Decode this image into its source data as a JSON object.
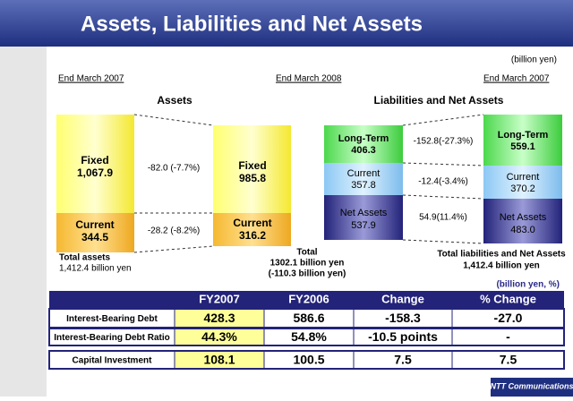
{
  "header": {
    "title": "Assets, Liabilities and Net Assets"
  },
  "unit_note": "(billion yen)",
  "periods": [
    "End March 2007",
    "End March 2008",
    "End March 2007"
  ],
  "assets": {
    "title": "Assets",
    "end_2007": {
      "fixed_label": "Fixed",
      "fixed": "1,067.9",
      "current_label": "Current",
      "current": "344.5",
      "total_label": "Total assets",
      "total": "1,412.4 billion yen"
    },
    "end_2008": {
      "fixed_label": "Fixed",
      "fixed": "985.8",
      "current_label": "Current",
      "current": "316.2",
      "total_label": "Total",
      "total": "1302.1 billion yen",
      "total_change": "(-110.3 billion yen)"
    },
    "changes": [
      "-82.0 (-7.7%)",
      "-28.2 (-8.2%)"
    ]
  },
  "liabilities": {
    "title": "Liabilities and Net Assets",
    "end_2008": {
      "long_term_label": "Long-Term",
      "long_term": "406.3",
      "current_label": "Current",
      "current": "357.8",
      "net_label": "Net Assets",
      "net": "537.9"
    },
    "end_2007": {
      "long_term_label": "Long-Term",
      "long_term": "559.1",
      "current_label": "Current",
      "current": "370.2",
      "net_label": "Net Assets",
      "net": "483.0",
      "total_label": "Total liabilities and Net Assets",
      "total": "1,412.4 billion yen"
    },
    "changes": [
      "-152.8(-27.3%)",
      "-12.4(-3.4%)",
      "54.9(11.4%)"
    ]
  },
  "table": {
    "unit": "(billion yen, %)",
    "columns": [
      "FY2007",
      "FY2006",
      "Change",
      "% Change"
    ],
    "rows": [
      [
        "Interest-Bearing Debt",
        "428.3",
        "586.6",
        "-158.3",
        "-27.0"
      ],
      [
        "Interest-Bearing Debt Ratio",
        "44.3%",
        "54.8%",
        "-10.5 points",
        "-"
      ],
      [
        "Capital Investment",
        "108.1",
        "100.5",
        "7.5",
        "7.5"
      ]
    ]
  },
  "footer": {
    "logo": "NTT Communications"
  }
}
